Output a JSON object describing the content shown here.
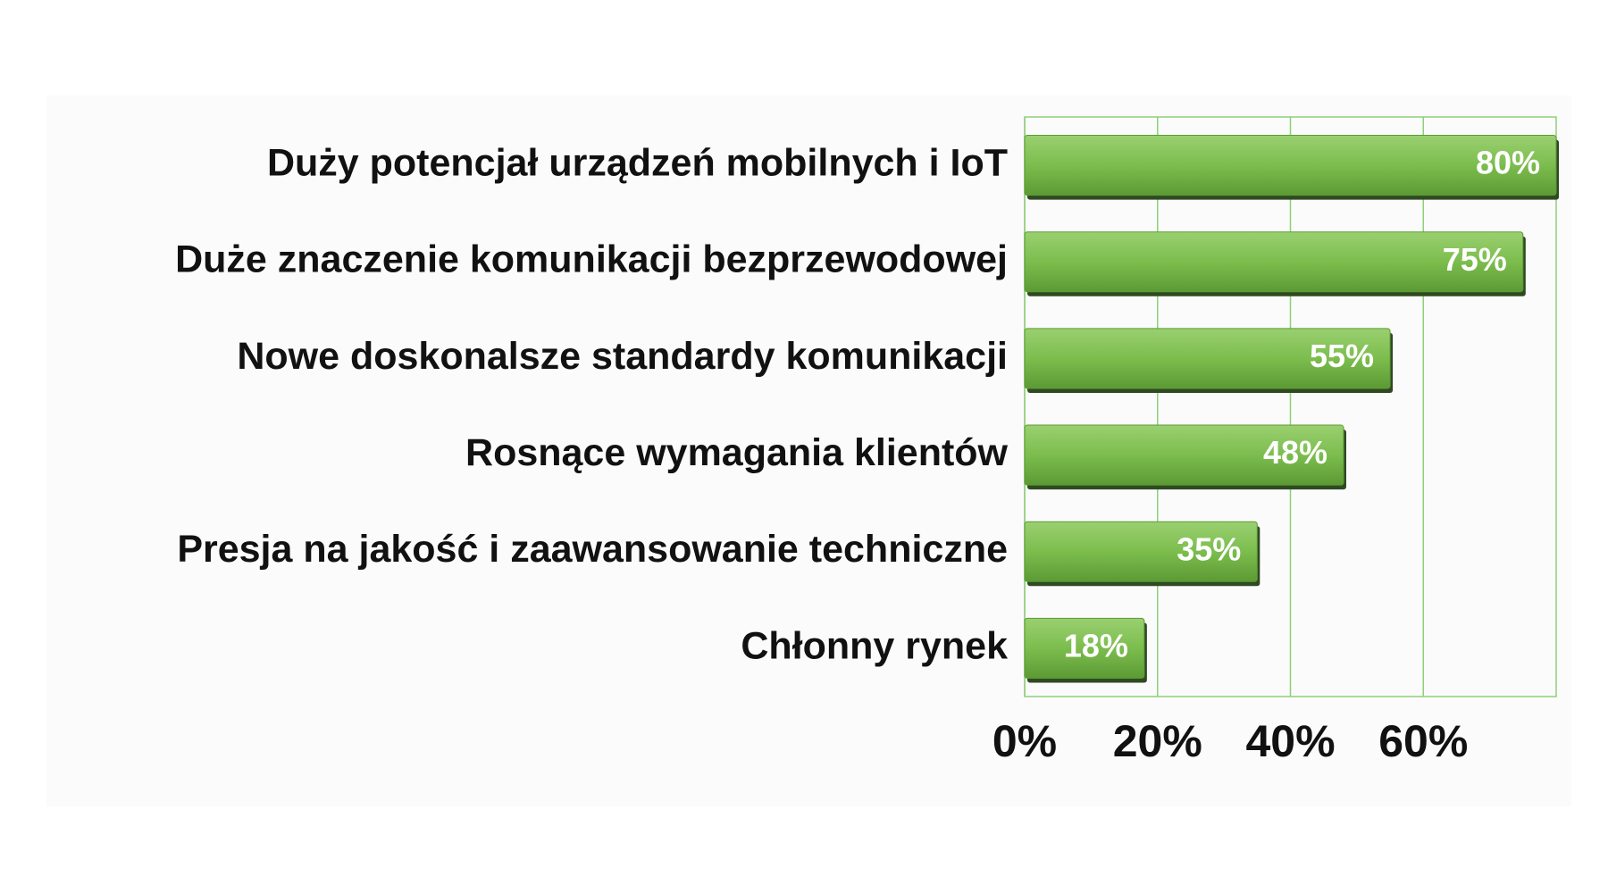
{
  "chart_data": {
    "type": "bar",
    "orientation": "horizontal",
    "categories": [
      "Duży potencjał urządzeń mobilnych i IoT",
      "Duże znaczenie komunikacji bezprzewodowej",
      "Nowe doskonalsze standardy komunikacji",
      "Rosnące wymagania klientów",
      "Presja na jakość i zaawansowanie techniczne",
      "Chłonny rynek"
    ],
    "values": [
      80,
      75,
      55,
      48,
      35,
      18
    ],
    "value_labels": [
      "80%",
      "75%",
      "55%",
      "48%",
      "35%",
      "18%"
    ],
    "color": "#7cbd4e",
    "xlim": [
      0,
      80
    ],
    "xticks": [
      {
        "value": 0,
        "label": "0%"
      },
      {
        "value": 20,
        "label": "20%"
      },
      {
        "value": 40,
        "label": "40%"
      },
      {
        "value": 60,
        "label": "60%"
      }
    ],
    "grid": true
  }
}
